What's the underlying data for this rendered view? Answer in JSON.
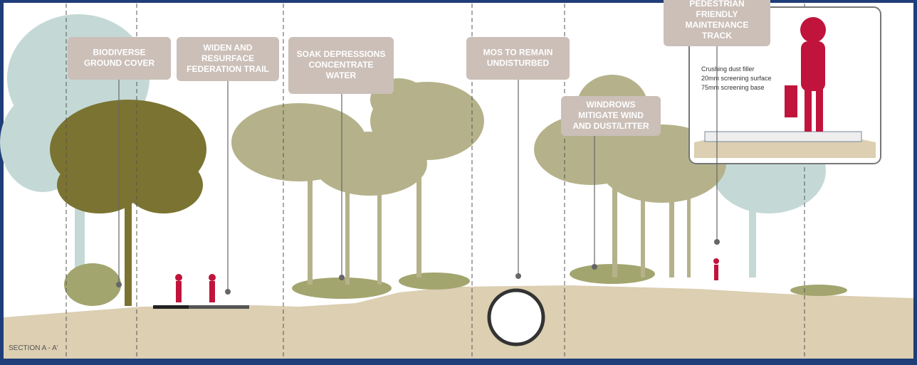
{
  "labels": [
    {
      "lines": [
        "BIODIVERSE",
        "GROUND COVER"
      ]
    },
    {
      "lines": [
        "WIDEN AND",
        "RESURFACE",
        "FEDERATION TRAIL"
      ]
    },
    {
      "lines": [
        "SOAK DEPRESSIONS",
        "CONCENTRATE",
        "WATER"
      ]
    },
    {
      "lines": [
        "MOS TO REMAIN",
        "UNDISTURBED"
      ]
    },
    {
      "lines": [
        "WINDROWS",
        "MITIGATE WIND",
        "AND DUST/LITTER"
      ]
    },
    {
      "lines": [
        "PEDESTRIAN",
        "FRIENDLY",
        "MAINTENANCE",
        "TRACK"
      ]
    }
  ],
  "inset": {
    "notes": [
      "Crushing dust filler",
      "20mm screening surface",
      "75mm screening base"
    ]
  },
  "section_label": "SECTION A - A'"
}
